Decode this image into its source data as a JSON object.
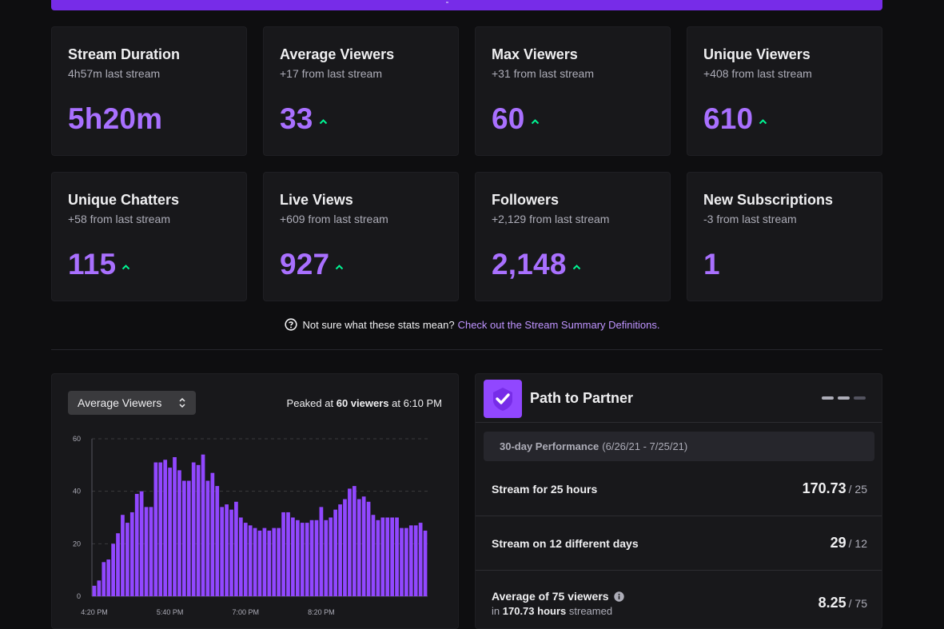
{
  "stats": [
    {
      "title": "Stream Duration",
      "sub": "4h57m last stream",
      "value": "5h20m",
      "trend": "none"
    },
    {
      "title": "Average Viewers",
      "sub": "+17 from last stream",
      "value": "33",
      "trend": "up"
    },
    {
      "title": "Max Viewers",
      "sub": "+31 from last stream",
      "value": "60",
      "trend": "up"
    },
    {
      "title": "Unique Viewers",
      "sub": "+408 from last stream",
      "value": "610",
      "trend": "up"
    },
    {
      "title": "Unique Chatters",
      "sub": "+58 from last stream",
      "value": "115",
      "trend": "up"
    },
    {
      "title": "Live Views",
      "sub": "+609 from last stream",
      "value": "927",
      "trend": "up"
    },
    {
      "title": "Followers",
      "sub": "+2,129 from last stream",
      "value": "2,148",
      "trend": "up"
    },
    {
      "title": "New Subscriptions",
      "sub": "-3 from last stream",
      "value": "1",
      "trend": "none"
    }
  ],
  "help": {
    "text": "Not sure what these stats mean?",
    "link": "Check out the Stream Summary Definitions."
  },
  "chart_panel": {
    "select_value": "Average Viewers",
    "peak_prefix": "Peaked at",
    "peak_value": "60 viewers",
    "peak_suffix": "at 6:10 PM"
  },
  "chart_data": {
    "type": "bar",
    "title": "",
    "xlabel": "",
    "ylabel": "",
    "ylim": [
      0,
      60
    ],
    "y_ticks": [
      "0",
      "20",
      "40",
      "60"
    ],
    "x_tick_labels": [
      "4:20 PM",
      "5:40 PM",
      "7:00 PM",
      "8:20 PM"
    ],
    "grid": true,
    "bar_color": "#9147ff",
    "values": [
      4,
      6,
      13,
      14,
      20,
      24,
      31,
      28,
      32,
      39,
      40,
      34,
      34,
      51,
      51,
      52,
      49,
      53,
      48,
      44,
      44,
      51,
      50,
      54,
      44,
      47,
      42,
      34,
      35,
      33,
      36,
      30,
      28,
      27,
      26,
      25,
      26,
      25,
      26,
      26,
      32,
      32,
      30,
      29,
      28,
      28,
      29,
      29,
      34,
      29,
      30,
      33,
      35,
      37,
      41,
      42,
      37,
      38,
      36,
      31,
      29,
      30,
      30,
      30,
      30,
      26,
      26,
      27,
      27,
      28,
      25
    ]
  },
  "partner": {
    "title": "Path to Partner",
    "perf_label": "30-day Performance",
    "perf_range": "(6/26/21 - 7/25/21)",
    "goals": [
      {
        "label": "Stream for 25 hours",
        "value": "170.73",
        "of": "/ 25"
      },
      {
        "label": "Stream on 12 different days",
        "value": "29",
        "of": "/ 12"
      },
      {
        "label": "Average of 75 viewers",
        "value": "8.25",
        "of": "/ 75",
        "sub_prefix": "in",
        "sub_value": "170.73 hours",
        "sub_suffix": "streamed"
      }
    ]
  },
  "colors": {
    "accent": "#a970ff",
    "banner": "#772ce8",
    "trend_up": "#00f593",
    "link": "#bf94ff"
  },
  "icons": [
    "up-arrow-icon",
    "question-circle-icon",
    "select-chevrons-icon",
    "partner-shield-check-icon",
    "info-icon"
  ]
}
